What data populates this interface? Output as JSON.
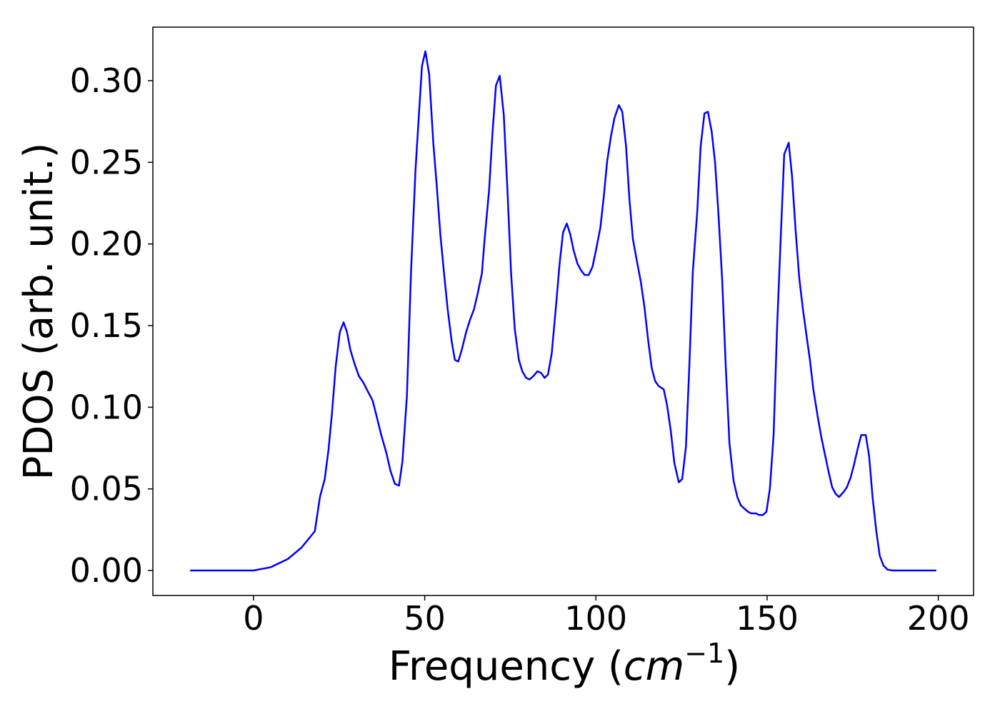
{
  "chart_data": {
    "type": "line",
    "ylabel": "PDOS (arb. unit.)",
    "xlabel_parts": [
      "Frequency (",
      "cm",
      "−1",
      ")"
    ],
    "color": "#0000ff",
    "xlim": [
      -29.4,
      210.3
    ],
    "ylim": [
      -0.0153,
      0.3328
    ],
    "xticks": [
      0,
      50,
      100,
      150,
      200
    ],
    "yticks": [
      {
        "value": 0,
        "label": "0.00"
      },
      {
        "value": 0.05,
        "label": "0.05"
      },
      {
        "value": 0.1,
        "label": "0.10"
      },
      {
        "value": 0.15,
        "label": "0.15"
      },
      {
        "value": 0.2,
        "label": "0.20"
      },
      {
        "value": 0.25,
        "label": "0.25"
      },
      {
        "value": 0.3,
        "label": "0.30"
      }
    ],
    "x": [
      -18.5,
      0,
      5,
      10,
      14,
      17.9,
      19.4,
      20.8,
      21.9,
      22.9,
      24.0,
      25.2,
      26.3,
      27.3,
      28.3,
      29.6,
      30.8,
      32.1,
      33.3,
      34.8,
      36.0,
      37.3,
      38.8,
      40.0,
      41.3,
      42.5,
      43.5,
      44.8,
      46.0,
      47.3,
      48.3,
      49.2,
      50.2,
      51.3,
      52.5,
      53.5,
      54.6,
      55.6,
      56.7,
      57.9,
      58.8,
      59.8,
      60.8,
      62.1,
      63.3,
      64.4,
      65.4,
      66.7,
      67.5,
      68.8,
      69.8,
      70.8,
      71.9,
      73.1,
      74.2,
      75.2,
      76.3,
      77.5,
      78.5,
      79.6,
      80.6,
      81.7,
      82.9,
      84.0,
      85.0,
      86.0,
      87.1,
      88.3,
      89.4,
      90.4,
      91.5,
      92.5,
      93.5,
      94.6,
      95.6,
      96.7,
      97.9,
      99.0,
      100.0,
      101.3,
      102.3,
      103.3,
      104.4,
      105.4,
      106.7,
      107.7,
      108.8,
      109.8,
      110.8,
      112.1,
      113.1,
      114.2,
      115.2,
      116.3,
      117.3,
      118.3,
      119.8,
      120.8,
      121.9,
      122.9,
      124.2,
      125.2,
      126.3,
      127.3,
      128.3,
      129.6,
      130.6,
      131.7,
      132.7,
      133.8,
      134.8,
      135.8,
      136.9,
      137.9,
      139.0,
      140.2,
      141.3,
      142.3,
      143.3,
      144.4,
      145.4,
      146.7,
      147.7,
      148.8,
      149.8,
      150.8,
      151.9,
      152.9,
      154.0,
      155.0,
      156.3,
      157.3,
      158.3,
      159.4,
      160.4,
      161.5,
      162.5,
      163.5,
      164.8,
      165.8,
      166.9,
      167.9,
      169.0,
      170.0,
      171.0,
      172.3,
      173.3,
      174.4,
      175.4,
      176.5,
      177.5,
      178.8,
      179.8,
      180.8,
      181.9,
      182.9,
      184.0,
      185.2,
      186.7,
      199.4
    ],
    "values": [
      0,
      0,
      0.002,
      0.007,
      0.014,
      0.024,
      0.045,
      0.056,
      0.074,
      0.096,
      0.125,
      0.146,
      0.152,
      0.146,
      0.135,
      0.126,
      0.119,
      0.115,
      0.11,
      0.104,
      0.094,
      0.083,
      0.072,
      0.061,
      0.053,
      0.052,
      0.067,
      0.107,
      0.183,
      0.245,
      0.279,
      0.309,
      0.318,
      0.304,
      0.262,
      0.236,
      0.205,
      0.183,
      0.16,
      0.14,
      0.129,
      0.128,
      0.135,
      0.146,
      0.154,
      0.16,
      0.169,
      0.182,
      0.203,
      0.233,
      0.268,
      0.297,
      0.303,
      0.279,
      0.231,
      0.183,
      0.148,
      0.129,
      0.122,
      0.118,
      0.117,
      0.119,
      0.122,
      0.121,
      0.118,
      0.12,
      0.133,
      0.161,
      0.188,
      0.207,
      0.2125,
      0.206,
      0.196,
      0.188,
      0.184,
      0.181,
      0.181,
      0.186,
      0.196,
      0.21,
      0.229,
      0.251,
      0.266,
      0.277,
      0.285,
      0.281,
      0.26,
      0.227,
      0.203,
      0.188,
      0.177,
      0.161,
      0.142,
      0.124,
      0.116,
      0.113,
      0.111,
      0.101,
      0.085,
      0.066,
      0.054,
      0.056,
      0.076,
      0.126,
      0.183,
      0.22,
      0.26,
      0.28,
      0.281,
      0.269,
      0.25,
      0.218,
      0.177,
      0.126,
      0.078,
      0.055,
      0.045,
      0.04,
      0.038,
      0.036,
      0.035,
      0.035,
      0.034,
      0.034,
      0.036,
      0.05,
      0.083,
      0.148,
      0.205,
      0.255,
      0.262,
      0.241,
      0.209,
      0.179,
      0.161,
      0.144,
      0.129,
      0.111,
      0.094,
      0.082,
      0.071,
      0.061,
      0.051,
      0.047,
      0.045,
      0.048,
      0.051,
      0.057,
      0.065,
      0.075,
      0.083,
      0.083,
      0.07,
      0.045,
      0.024,
      0.009,
      0.003,
      0.0005,
      0,
      0
    ]
  }
}
